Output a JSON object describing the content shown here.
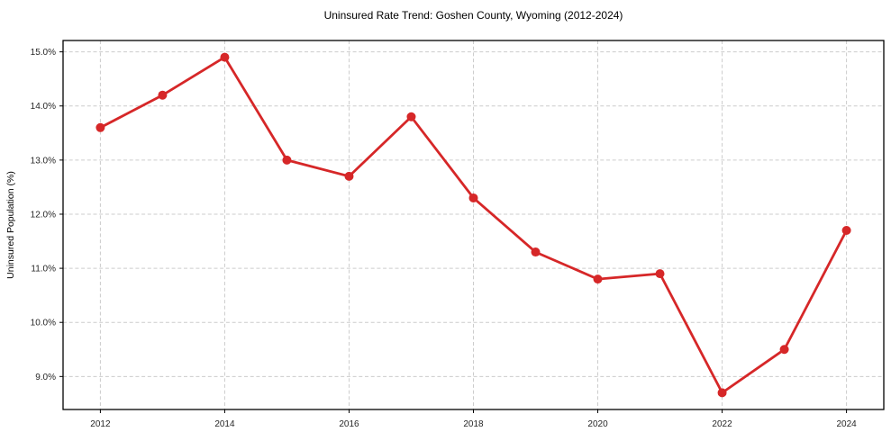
{
  "chart_data": {
    "type": "line",
    "title": "Uninsured Rate Trend: Goshen County, Wyoming (2012-2024)",
    "xlabel": "",
    "ylabel": "Uninsured Population (%)",
    "x": [
      2012,
      2013,
      2014,
      2015,
      2016,
      2017,
      2018,
      2019,
      2020,
      2021,
      2022,
      2023,
      2024
    ],
    "values": [
      13.6,
      14.2,
      14.9,
      13.0,
      12.7,
      13.8,
      12.3,
      11.3,
      10.8,
      10.9,
      8.7,
      9.5,
      11.7
    ],
    "xlim": [
      2011.4,
      2024.6
    ],
    "ylim": [
      8.39,
      15.21
    ],
    "x_ticks": {
      "values": [
        2012,
        2014,
        2016,
        2018,
        2020,
        2022,
        2024
      ],
      "labels": [
        "2012",
        "2014",
        "2016",
        "2018",
        "2020",
        "2022",
        "2024"
      ]
    },
    "y_ticks": {
      "values": [
        9.0,
        10.0,
        11.0,
        12.0,
        13.0,
        14.0,
        15.0
      ],
      "labels": [
        "9.0%",
        "10.0%",
        "11.0%",
        "12.0%",
        "13.0%",
        "14.0%",
        "15.0%"
      ]
    },
    "grid": {
      "show": true,
      "style": "dashed",
      "color": "#cccccc"
    },
    "legend": {
      "show": false
    },
    "line_color": "#d62728",
    "marker": "circle",
    "marker_radius": 5,
    "line_width": 2.8,
    "colors": {
      "background": "#ffffff",
      "spine": "#000000",
      "tick": "#000000",
      "text": "#000000"
    }
  }
}
